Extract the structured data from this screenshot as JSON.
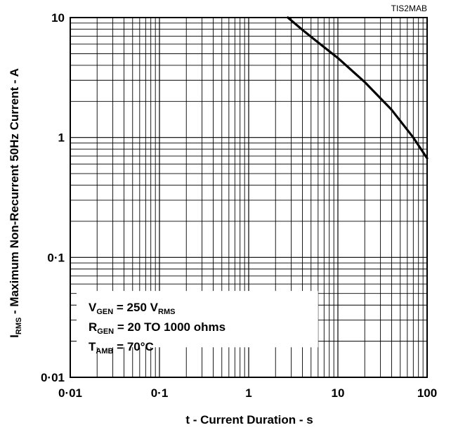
{
  "figure_id": "TIS2MAB",
  "chart_data": {
    "type": "line",
    "xscale": "log",
    "yscale": "log",
    "xlim": [
      0.01,
      100
    ],
    "ylim": [
      0.01,
      10
    ],
    "grid": true,
    "xlabel": "t - Current Duration - s",
    "ylabel": {
      "main": "I",
      "sub": "RMS",
      "rest": " - Maximum Non-Recurrent 50Hz Current - A"
    },
    "x_ticks": [
      {
        "value": 0.01,
        "label": "0·01"
      },
      {
        "value": 0.1,
        "label": "0·1"
      },
      {
        "value": 1,
        "label": "1"
      },
      {
        "value": 10,
        "label": "10"
      },
      {
        "value": 100,
        "label": "100"
      }
    ],
    "y_ticks": [
      {
        "value": 10,
        "label": "10"
      },
      {
        "value": 1,
        "label": "1"
      },
      {
        "value": 0.1,
        "label": "0·1"
      },
      {
        "value": 0.01,
        "label": "0·01"
      }
    ],
    "series": [
      {
        "x": [
          2.75,
          4,
          6,
          10,
          20,
          40,
          70,
          100
        ],
        "y": [
          10,
          7.9,
          6.2,
          4.6,
          2.9,
          1.7,
          1.0,
          0.67
        ]
      }
    ],
    "annotations": [
      [
        {
          "t": "V",
          "sub": false
        },
        {
          "t": "GEN",
          "sub": true
        },
        {
          "t": " = 250 V",
          "sub": false
        },
        {
          "t": "RMS",
          "sub": true
        }
      ],
      [
        {
          "t": "R",
          "sub": false
        },
        {
          "t": "GEN",
          "sub": true
        },
        {
          "t": " = 20 TO 1000 ohms",
          "sub": false
        }
      ],
      [
        {
          "t": "T",
          "sub": false
        },
        {
          "t": "AMB",
          "sub": true
        },
        {
          "t": " = 70°C",
          "sub": false
        }
      ]
    ]
  }
}
